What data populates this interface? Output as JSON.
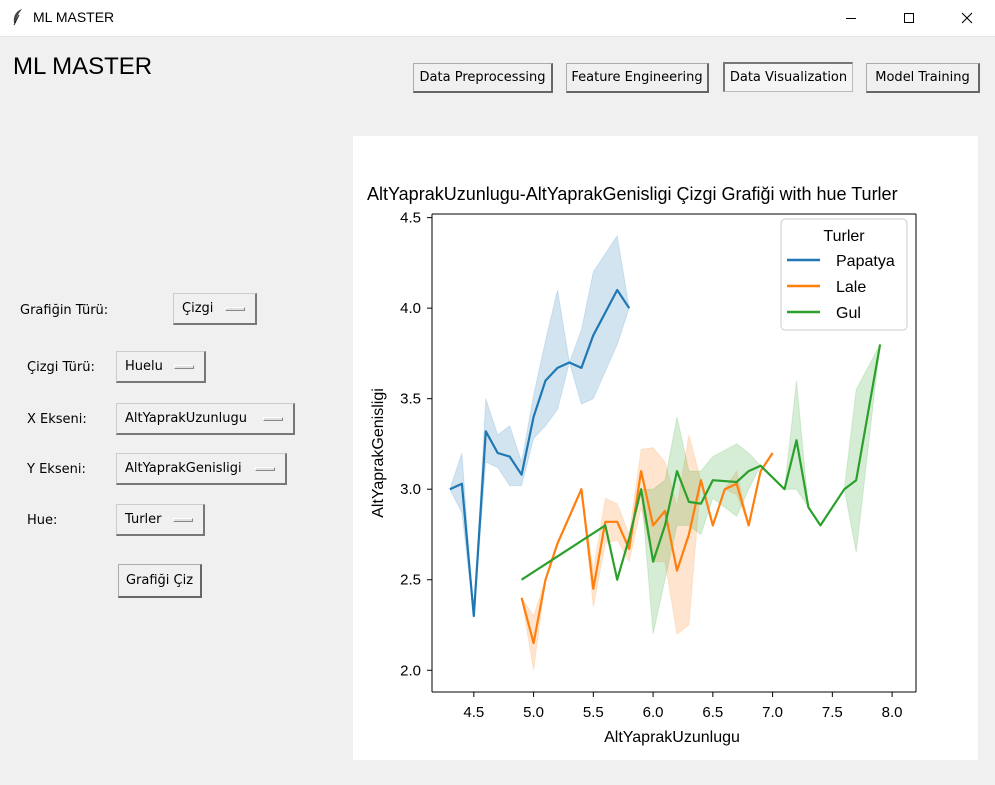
{
  "window": {
    "title": "ML MASTER"
  },
  "app": {
    "title": "ML MASTER"
  },
  "nav": {
    "preprocessing": "Data Preprocessing",
    "feature": "Feature Engineering",
    "visualization": "Data Visualization",
    "training": "Model Training"
  },
  "form": {
    "chart_type_label": "Grafiğin Türü:",
    "chart_type_value": "Çizgi",
    "line_type_label": "Çizgi Türü:",
    "line_type_value": "Huelu",
    "x_label": "X Ekseni:",
    "x_value": "AltYaprakUzunlugu",
    "y_label": "Y Ekseni:",
    "y_value": "AltYaprakGenisligi",
    "hue_label": "Hue:",
    "hue_value": "Turler",
    "draw_button": "Grafiği Çiz"
  },
  "chart_data": {
    "type": "line",
    "title": "AltYaprakUzunlugu-AltYaprakGenisligi  Çizgi Grafiği with hue Turler",
    "xlabel": "AltYaprakUzunlugu",
    "ylabel": "AltYaprakGenisligi",
    "xlim": [
      4.15,
      8.2
    ],
    "ylim": [
      1.88,
      4.52
    ],
    "xticks": [
      "4.5",
      "5.0",
      "5.5",
      "6.0",
      "6.5",
      "7.0",
      "7.5",
      "8.0"
    ],
    "yticks": [
      "2.0",
      "2.5",
      "3.0",
      "3.5",
      "4.0",
      "4.5"
    ],
    "grid": false,
    "legend": {
      "title": "Turler",
      "placement": "top-right"
    },
    "series": [
      {
        "name": "Papatya",
        "color": "#1f77b4",
        "x": [
          4.3,
          4.4,
          4.5,
          4.6,
          4.7,
          4.8,
          4.9,
          5.0,
          5.1,
          5.2,
          5.3,
          5.4,
          5.5,
          5.7,
          5.8
        ],
        "y": [
          3.0,
          3.03,
          2.3,
          3.32,
          3.2,
          3.18,
          3.08,
          3.4,
          3.6,
          3.67,
          3.7,
          3.67,
          3.85,
          4.1,
          4.0
        ],
        "ci_low": [
          3.0,
          2.87,
          2.3,
          3.15,
          3.12,
          3.02,
          3.02,
          3.28,
          3.35,
          3.44,
          3.7,
          3.47,
          3.5,
          3.8,
          4.0
        ],
        "ci_high": [
          3.0,
          3.2,
          2.3,
          3.5,
          3.3,
          3.35,
          3.15,
          3.52,
          3.82,
          4.1,
          3.7,
          3.88,
          4.2,
          4.4,
          4.0
        ]
      },
      {
        "name": "Lale",
        "color": "#ff7f0e",
        "x": [
          4.9,
          5.0,
          5.1,
          5.2,
          5.4,
          5.5,
          5.6,
          5.7,
          5.8,
          5.9,
          6.0,
          6.1,
          6.2,
          6.3,
          6.4,
          6.5,
          6.6,
          6.7,
          6.8,
          6.9,
          7.0
        ],
        "y": [
          2.4,
          2.15,
          2.5,
          2.7,
          3.0,
          2.45,
          2.82,
          2.82,
          2.67,
          3.1,
          2.8,
          2.88,
          2.55,
          2.75,
          3.05,
          2.8,
          3.0,
          3.03,
          2.8,
          3.1,
          3.2
        ],
        "ci_low": [
          2.4,
          2.0,
          2.5,
          2.7,
          3.0,
          2.35,
          2.7,
          2.72,
          2.6,
          2.9,
          2.6,
          2.6,
          2.2,
          2.25,
          3.05,
          2.8,
          3.0,
          2.97,
          2.8,
          3.1,
          3.2
        ],
        "ci_high": [
          2.4,
          2.3,
          2.5,
          2.7,
          3.0,
          2.55,
          2.95,
          2.92,
          2.75,
          3.22,
          3.23,
          3.15,
          2.9,
          3.3,
          3.05,
          2.8,
          3.0,
          3.1,
          2.8,
          3.1,
          3.2
        ]
      },
      {
        "name": "Gul",
        "color": "#2ca02c",
        "x": [
          4.9,
          5.6,
          5.7,
          5.8,
          5.9,
          6.0,
          6.1,
          6.2,
          6.3,
          6.4,
          6.5,
          6.7,
          6.8,
          6.9,
          7.1,
          7.2,
          7.3,
          7.4,
          7.6,
          7.7,
          7.9
        ],
        "y": [
          2.5,
          2.8,
          2.5,
          2.73,
          3.0,
          2.6,
          2.8,
          3.1,
          2.93,
          2.92,
          3.05,
          3.04,
          3.1,
          3.13,
          3.0,
          3.27,
          2.9,
          2.8,
          3.0,
          3.05,
          3.8
        ],
        "ci_low": [
          2.5,
          2.8,
          2.5,
          2.73,
          3.0,
          2.2,
          2.5,
          2.8,
          2.8,
          2.75,
          2.95,
          2.85,
          3.0,
          3.13,
          3.0,
          3.0,
          2.9,
          2.8,
          3.0,
          2.65,
          3.8
        ],
        "ci_high": [
          2.5,
          2.8,
          2.5,
          2.73,
          3.0,
          3.0,
          3.05,
          3.4,
          3.1,
          3.1,
          3.18,
          3.25,
          3.2,
          3.13,
          3.0,
          3.6,
          2.9,
          2.8,
          3.0,
          3.55,
          3.8
        ]
      }
    ]
  }
}
